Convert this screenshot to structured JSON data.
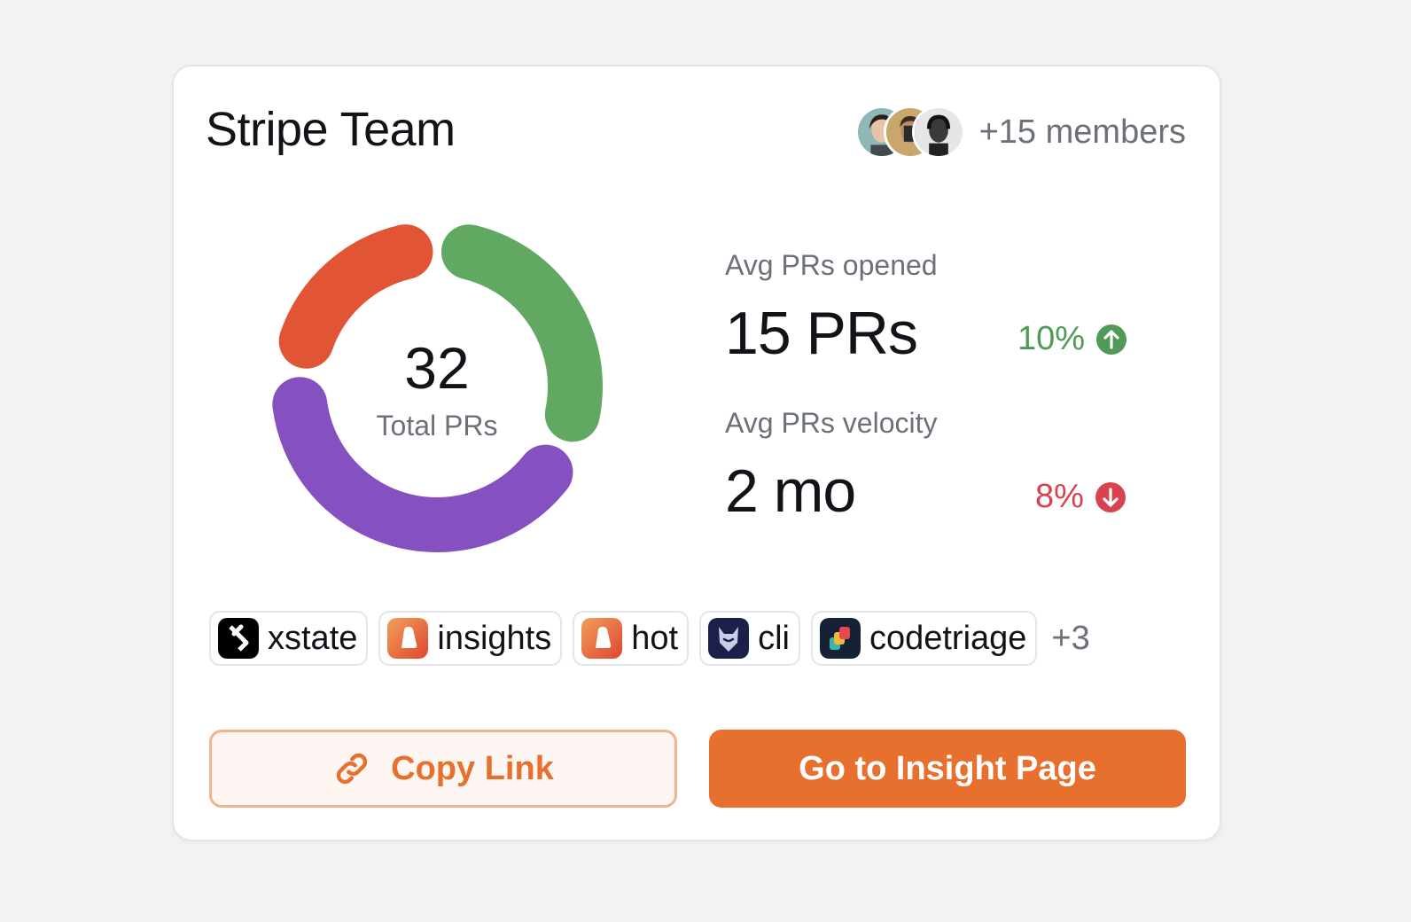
{
  "card": {
    "title": "Stripe Team",
    "members_text": "+15 members",
    "avatars": [
      "avatar-1",
      "avatar-2",
      "avatar-3"
    ]
  },
  "chart_data": {
    "type": "pie",
    "center_value": "32",
    "center_label": "Total PRs",
    "colors": [
      "#61a863",
      "#8551c1",
      "#e15535"
    ],
    "segment_shares": [
      0.3,
      0.42,
      0.22
    ]
  },
  "stats": {
    "opened": {
      "label": "Avg PRs opened",
      "value": "15 PRs",
      "change": "10%",
      "direction": "up",
      "color": "#4f9a56"
    },
    "velocity": {
      "label": "Avg PRs velocity",
      "value": "2 mo",
      "change": "8%",
      "direction": "down",
      "color": "#d9434f"
    }
  },
  "repos": [
    {
      "name": "xstate",
      "icon": "xstate-logo-icon"
    },
    {
      "name": "insights",
      "icon": "opensauced-logo-icon"
    },
    {
      "name": "hot",
      "icon": "opensauced-logo-icon"
    },
    {
      "name": "cli",
      "icon": "cli-logo-icon"
    },
    {
      "name": "codetriage",
      "icon": "codetriage-logo-icon"
    }
  ],
  "repos_more": "+3",
  "actions": {
    "copy_link": "Copy Link",
    "go_insight": "Go to Insight Page",
    "copy_icon": "link-icon"
  },
  "colors": {
    "accent": "#e8702e",
    "background": "#f1f2f4"
  }
}
